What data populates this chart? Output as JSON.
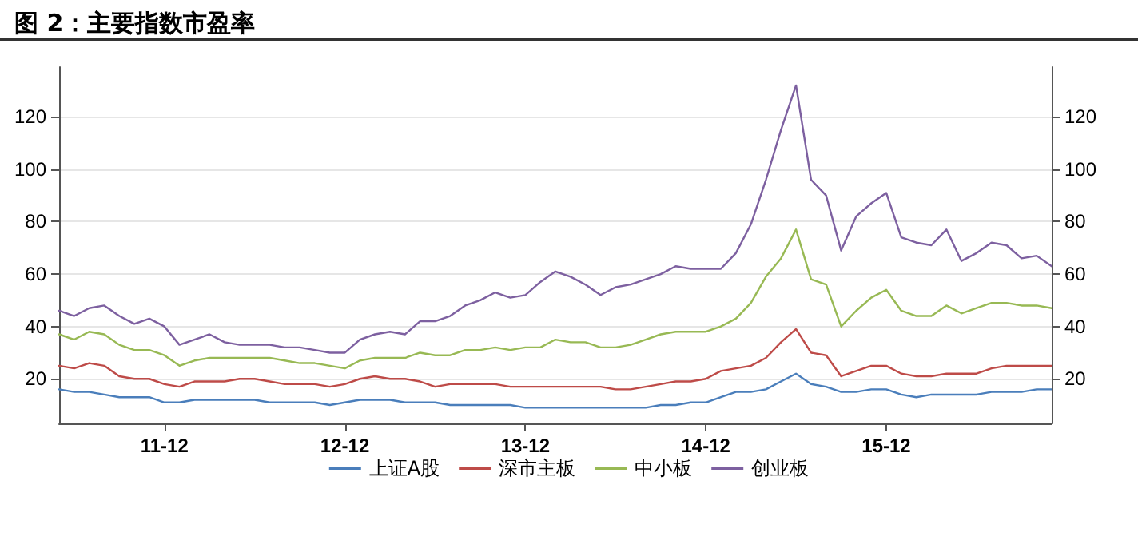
{
  "chart_data": {
    "type": "line",
    "title": "图 2：主要指数市盈率",
    "categories": [
      null,
      null,
      null,
      null,
      null,
      null,
      null,
      "11-12",
      null,
      null,
      null,
      null,
      null,
      null,
      null,
      null,
      null,
      null,
      null,
      "12-12",
      null,
      null,
      null,
      null,
      null,
      null,
      null,
      null,
      null,
      null,
      null,
      "13-12",
      null,
      null,
      null,
      null,
      null,
      null,
      null,
      null,
      null,
      null,
      null,
      "14-12",
      null,
      null,
      null,
      null,
      null,
      null,
      null,
      null,
      null,
      null,
      null,
      "15-12",
      null,
      null,
      null,
      null,
      null,
      null,
      null,
      null,
      null,
      null,
      null
    ],
    "series": [
      {
        "name": "上证A股",
        "color": "#4a7ebb",
        "values": [
          16,
          15,
          15,
          14,
          13,
          13,
          13,
          11,
          11,
          12,
          12,
          12,
          12,
          12,
          11,
          11,
          11,
          11,
          10,
          11,
          12,
          12,
          12,
          11,
          11,
          11,
          10,
          10,
          10,
          10,
          10,
          9,
          9,
          9,
          9,
          9,
          9,
          9,
          9,
          9,
          10,
          10,
          11,
          11,
          13,
          15,
          15,
          16,
          19,
          22,
          18,
          17,
          15,
          15,
          16,
          16,
          14,
          13,
          14,
          14,
          14,
          14,
          15,
          15,
          15,
          16,
          16
        ]
      },
      {
        "name": "深市主板",
        "color": "#be4b48",
        "values": [
          25,
          24,
          26,
          25,
          21,
          20,
          20,
          18,
          17,
          19,
          19,
          19,
          20,
          20,
          19,
          18,
          18,
          18,
          17,
          18,
          20,
          21,
          20,
          20,
          19,
          17,
          18,
          18,
          18,
          18,
          17,
          17,
          17,
          17,
          17,
          17,
          17,
          16,
          16,
          17,
          18,
          19,
          19,
          20,
          23,
          24,
          25,
          28,
          34,
          39,
          30,
          29,
          21,
          23,
          25,
          25,
          22,
          21,
          21,
          22,
          22,
          22,
          24,
          25,
          25,
          25,
          25
        ]
      },
      {
        "name": "中小板",
        "color": "#98b954",
        "values": [
          37,
          35,
          38,
          37,
          33,
          31,
          31,
          29,
          25,
          27,
          28,
          28,
          28,
          28,
          28,
          27,
          26,
          26,
          25,
          24,
          27,
          28,
          28,
          28,
          30,
          29,
          29,
          31,
          31,
          32,
          31,
          32,
          32,
          35,
          34,
          34,
          32,
          32,
          33,
          35,
          37,
          38,
          38,
          38,
          40,
          43,
          49,
          59,
          66,
          77,
          58,
          56,
          40,
          46,
          51,
          54,
          46,
          44,
          44,
          48,
          45,
          47,
          49,
          49,
          48,
          48,
          47
        ]
      },
      {
        "name": "创业板",
        "color": "#7d60a0",
        "values": [
          46,
          44,
          47,
          48,
          44,
          41,
          43,
          40,
          33,
          35,
          37,
          34,
          33,
          33,
          33,
          32,
          32,
          31,
          30,
          30,
          35,
          37,
          38,
          37,
          42,
          42,
          44,
          48,
          50,
          53,
          51,
          52,
          57,
          61,
          59,
          56,
          52,
          55,
          56,
          58,
          60,
          63,
          62,
          62,
          62,
          68,
          79,
          96,
          115,
          132,
          96,
          90,
          69,
          82,
          87,
          91,
          74,
          72,
          71,
          77,
          65,
          68,
          72,
          71,
          66,
          67,
          63
        ]
      }
    ],
    "ylim": [
      3,
      139
    ],
    "yticks": [
      20,
      40,
      60,
      80,
      100,
      120
    ],
    "y2lim": [
      3,
      139
    ],
    "y2ticks": [
      20,
      40,
      60,
      80,
      100,
      120
    ],
    "grid": "y",
    "legend": "bottom",
    "marker": "none",
    "line_style": "solid"
  }
}
